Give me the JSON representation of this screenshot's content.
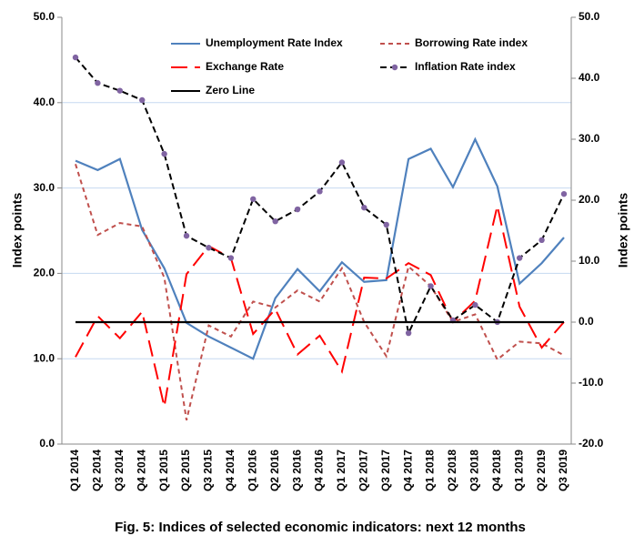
{
  "chart_data": {
    "type": "line",
    "caption": "Fig. 5: Indices of selected economic indicators: next 12 months",
    "y_label": "Index points",
    "y2_label": "Index points",
    "categories": [
      "Q1 2014",
      "Q2 2014",
      "Q3 2014",
      "Q4 2014",
      "Q1 2015",
      "Q2 2015",
      "Q3 2015",
      "Q4 2014",
      "Q1 2016",
      "Q2 2016",
      "Q3 2016",
      "Q4 2016",
      "Q1 2017",
      "Q2 2017",
      "Q3 2017",
      "Q4 2017",
      "Q1 2018",
      "Q2 2018",
      "Q3 2018",
      "Q4 2018",
      "Q1 2019",
      "Q2 2019",
      "Q3 2019"
    ],
    "ylim": [
      0,
      50
    ],
    "yticks": [
      {
        "value": 0,
        "label": "0.0"
      },
      {
        "value": 10,
        "label": "10.0"
      },
      {
        "value": 20,
        "label": "20.0"
      },
      {
        "value": 30,
        "label": "30.0"
      },
      {
        "value": 40,
        "label": "40.0"
      },
      {
        "value": 50,
        "label": "50.0"
      }
    ],
    "y2lim": [
      -20,
      50
    ],
    "y2ticks": [
      {
        "value": -20,
        "label": "-20.0"
      },
      {
        "value": -10,
        "label": "-10.0"
      },
      {
        "value": 0,
        "label": "0.0"
      },
      {
        "value": 10,
        "label": "10.0"
      },
      {
        "value": 20,
        "label": "20.0"
      },
      {
        "value": 30,
        "label": "30.0"
      },
      {
        "value": 40,
        "label": "40.0"
      },
      {
        "value": 50,
        "label": "50.0"
      }
    ],
    "grid": true,
    "legend": "top",
    "series": [
      {
        "name": "Unemployment Rate Index",
        "color": "#4f81bd",
        "dash": "solid",
        "values": [
          33.2,
          32.1,
          33.4,
          25.1,
          20.6,
          14.2,
          12.6,
          11.3,
          10.0,
          17.1,
          20.5,
          17.9,
          21.3,
          19.0,
          19.2,
          33.4,
          34.6,
          30.1,
          35.7,
          30.2,
          18.8,
          21.2,
          24.2
        ]
      },
      {
        "name": "Borrowing Rate index",
        "color": "#c0504d",
        "dash": "short",
        "values": [
          32.8,
          24.5,
          25.9,
          25.5,
          19.5,
          2.8,
          13.9,
          12.6,
          16.7,
          16.0,
          18.0,
          16.7,
          20.6,
          14.3,
          10.3,
          20.8,
          18.5,
          14.3,
          15.2,
          9.9,
          12.0,
          11.8,
          10.4
        ]
      },
      {
        "name": "Exchange Rate",
        "color": "#ff0000",
        "dash": "long",
        "values": [
          10.2,
          15.0,
          12.4,
          15.5,
          4.4,
          19.9,
          23.2,
          21.8,
          12.9,
          15.8,
          10.5,
          12.7,
          8.5,
          19.5,
          19.4,
          21.2,
          19.8,
          14.3,
          16.8,
          27.9,
          16.1,
          11.3,
          14.3
        ]
      },
      {
        "name": "Inflation Rate index",
        "color": "#000000",
        "marker_color": "#8064a2",
        "dash": "medium",
        "values": [
          45.3,
          42.3,
          41.4,
          40.3,
          34.0,
          24.4,
          23.0,
          21.8,
          28.7,
          26.1,
          27.5,
          29.6,
          33.0,
          27.7,
          25.7,
          13.0,
          18.5,
          14.5,
          16.3,
          14.3,
          21.8,
          23.9,
          29.3
        ]
      },
      {
        "name": "Zero Line",
        "color": "#000000",
        "dash": "solid",
        "axis": "y2",
        "values": [
          0,
          0,
          0,
          0,
          0,
          0,
          0,
          0,
          0,
          0,
          0,
          0,
          0,
          0,
          0,
          0,
          0,
          0,
          0,
          0,
          0,
          0,
          0
        ]
      }
    ]
  }
}
